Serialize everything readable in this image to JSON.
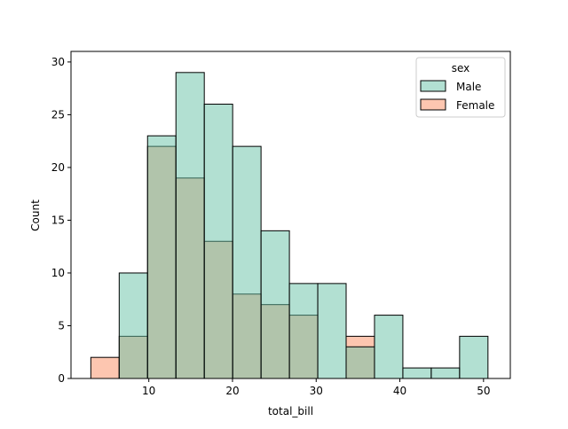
{
  "chart_data": {
    "type": "histogram",
    "title": "",
    "xlabel": "total_bill",
    "ylabel": "Count",
    "xlim": [
      0.7,
      53.2
    ],
    "ylim": [
      0,
      31
    ],
    "x_ticks": [
      10,
      20,
      30,
      40,
      50
    ],
    "y_ticks": [
      0,
      5,
      10,
      15,
      20,
      25,
      30
    ],
    "bin_edges": [
      3.07,
      6.46,
      9.85,
      13.24,
      16.63,
      20.02,
      23.41,
      26.8,
      30.19,
      33.58,
      36.97,
      40.36,
      43.75,
      47.14,
      50.53
    ],
    "series": [
      {
        "name": "Male",
        "color": "#66c2a5",
        "values": [
          0,
          10,
          23,
          29,
          26,
          22,
          14,
          9,
          9,
          3,
          6,
          1,
          1,
          4
        ]
      },
      {
        "name": "Female",
        "color": "#fc8d62",
        "values": [
          2,
          4,
          22,
          19,
          13,
          8,
          7,
          6,
          0,
          4,
          0,
          0,
          0,
          0
        ]
      }
    ],
    "legend": {
      "title": "sex",
      "position": "top-right",
      "entries": [
        "Male",
        "Female"
      ]
    }
  }
}
